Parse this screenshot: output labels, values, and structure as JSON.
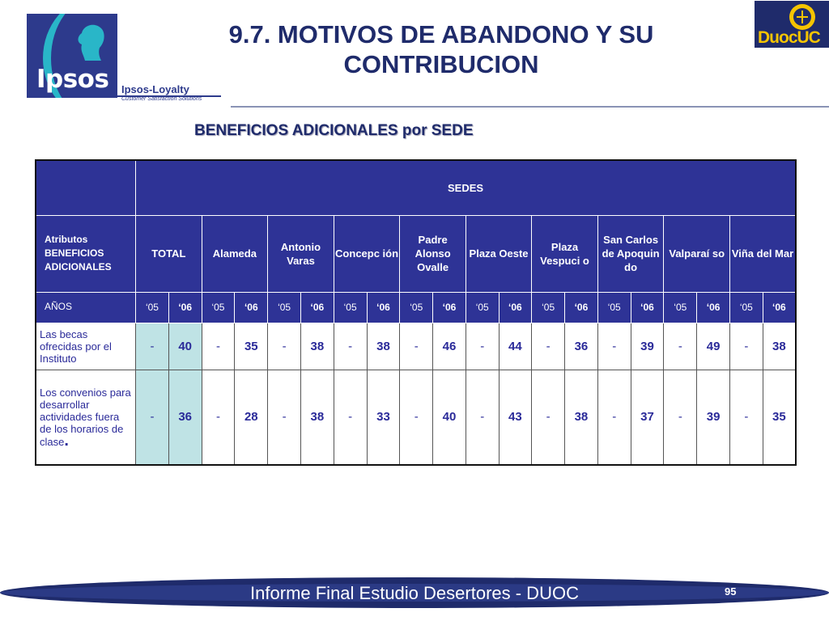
{
  "title_line1": "9.7. MOTIVOS DE ABANDONO Y SU",
  "title_line2": "CONTRIBUCION",
  "subtitle": "BENEFICIOS ADICIONALES por SEDE",
  "logos": {
    "ipsos": "Ipsos",
    "ipsos_loyalty": "Ipsos-Loyalty",
    "ipsos_loyalty_sub": "Customer Satisfaction Solutions",
    "duoc": "DuocUC"
  },
  "table": {
    "sedes_header": "SEDES",
    "attr_header": "Atributos BENEFICIOS ADICIONALES",
    "total_header": "TOTAL",
    "campus_headers": [
      "Alameda",
      "Antonio Varas",
      "Concepc ión",
      "Padre Alonso Ovalle",
      "Plaza Oeste",
      "Plaza Vespuci o",
      "San Carlos de Apoquin do",
      "Valparaí so",
      "Viña del Mar"
    ],
    "anos_label": "AÑOS",
    "year_a": "‘05",
    "year_b": "‘06",
    "rows": [
      {
        "label": "Las becas ofrecidas por el Instituto",
        "values": [
          "-",
          "40",
          "-",
          "35",
          "-",
          "38",
          "-",
          "38",
          "-",
          "46",
          "-",
          "44",
          "-",
          "36",
          "-",
          "39",
          "-",
          "49",
          "-",
          "38"
        ]
      },
      {
        "label": "Los convenios para desarrollar actividades fuera de los horarios de clase",
        "label_end": ".",
        "values": [
          "-",
          "36",
          "-",
          "28",
          "-",
          "38",
          "-",
          "33",
          "-",
          "40",
          "-",
          "43",
          "-",
          "38",
          "-",
          "37",
          "-",
          "39",
          "-",
          "35"
        ]
      }
    ]
  },
  "footer": {
    "text": "Informe Final Estudio Desertores - DUOC",
    "page": "95"
  }
}
